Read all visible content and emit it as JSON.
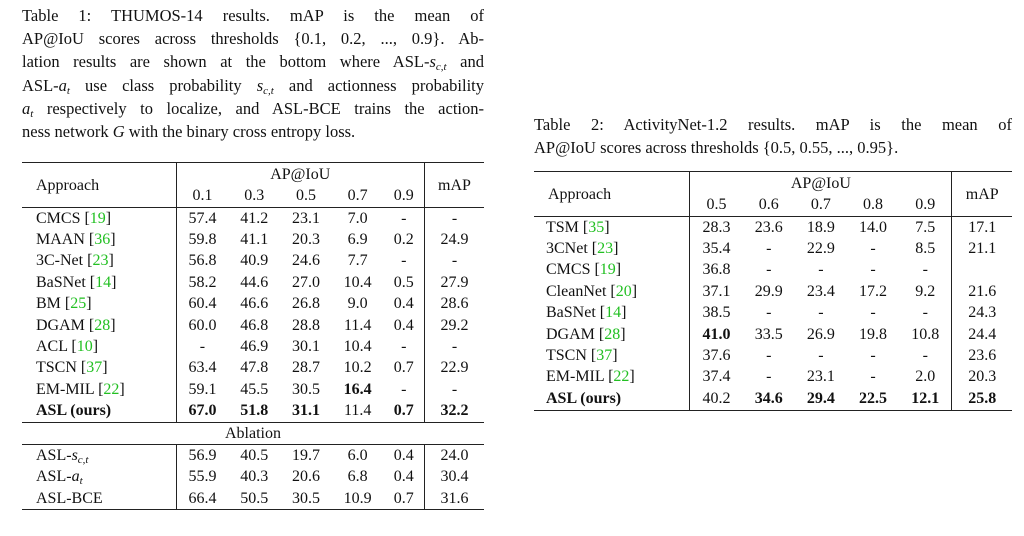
{
  "table1": {
    "caption_lines": [
      [
        {
          "t": "Table 1:  THUMOS-14 results.  mAP is the mean of"
        }
      ],
      [
        {
          "t": "AP@IoU scores across thresholds {0.1, 0.2, ..., 0.9}.  Ab-"
        }
      ],
      [
        {
          "t": "lation results are shown at the bottom where ASL-"
        },
        {
          "t": "s",
          "i": true
        },
        {
          "sub": "c,t"
        },
        {
          "t": " and"
        }
      ],
      [
        {
          "t": "ASL-"
        },
        {
          "t": "a",
          "i": true
        },
        {
          "sub": "t"
        },
        {
          "t": " use class probability "
        },
        {
          "t": "s",
          "i": true
        },
        {
          "sub": "c,t"
        },
        {
          "t": " and actionness probability"
        }
      ],
      [
        {
          "t": "a",
          "i": true
        },
        {
          "sub": "t"
        },
        {
          "t": " respectively to localize, and ASL-BCE trains the action-"
        }
      ],
      [
        {
          "t": "ness network "
        },
        {
          "t": "G",
          "i": true
        },
        {
          "t": " with the binary cross entropy loss."
        }
      ]
    ],
    "header": {
      "approach": "Approach",
      "group": "AP@IoU",
      "thresholds": [
        "0.1",
        "0.3",
        "0.5",
        "0.7",
        "0.9"
      ],
      "map": "mAP"
    },
    "rows": [
      {
        "name": "CMCS",
        "ref": "19",
        "values": [
          "57.4",
          "41.2",
          "23.1",
          "7.0",
          "-",
          "-"
        ],
        "bold": []
      },
      {
        "name": "MAAN",
        "ref": "36",
        "values": [
          "59.8",
          "41.1",
          "20.3",
          "6.9",
          "0.2",
          "24.9"
        ],
        "bold": []
      },
      {
        "name": "3C-Net",
        "ref": "23",
        "values": [
          "56.8",
          "40.9",
          "24.6",
          "7.7",
          "-",
          "-"
        ],
        "bold": []
      },
      {
        "name": "BaSNet",
        "ref": "14",
        "values": [
          "58.2",
          "44.6",
          "27.0",
          "10.4",
          "0.5",
          "27.9"
        ],
        "bold": []
      },
      {
        "name": "BM",
        "ref": "25",
        "values": [
          "60.4",
          "46.6",
          "26.8",
          "9.0",
          "0.4",
          "28.6"
        ],
        "bold": []
      },
      {
        "name": "DGAM",
        "ref": "28",
        "values": [
          "60.0",
          "46.8",
          "28.8",
          "11.4",
          "0.4",
          "29.2"
        ],
        "bold": []
      },
      {
        "name": "ACL",
        "ref": "10",
        "values": [
          "-",
          "46.9",
          "30.1",
          "10.4",
          "-",
          "-"
        ],
        "bold": []
      },
      {
        "name": "TSCN",
        "ref": "37",
        "values": [
          "63.4",
          "47.8",
          "28.7",
          "10.2",
          "0.7",
          "22.9"
        ],
        "bold": []
      },
      {
        "name": "EM-MIL",
        "ref": "22",
        "values": [
          "59.1",
          "45.5",
          "30.5",
          "16.4",
          "-",
          "-"
        ],
        "bold": [
          3
        ]
      },
      {
        "name": "ASL (ours)",
        "ref": "",
        "values": [
          "67.0",
          "51.8",
          "31.1",
          "11.4",
          "0.7",
          "32.2"
        ],
        "bold": [
          -1,
          0,
          1,
          2,
          4,
          5
        ]
      }
    ],
    "ablation_label": "Ablation",
    "ablation_rows": [
      {
        "name": "ASL-",
        "math": "s",
        "sub": "c,t",
        "values": [
          "56.9",
          "40.5",
          "19.7",
          "6.0",
          "0.4",
          "24.0"
        ]
      },
      {
        "name": "ASL-",
        "math": "a",
        "sub": "t",
        "values": [
          "55.9",
          "40.3",
          "20.6",
          "6.8",
          "0.4",
          "30.4"
        ]
      },
      {
        "name": "ASL-BCE",
        "values": [
          "66.4",
          "50.5",
          "30.5",
          "10.9",
          "0.7",
          "31.6"
        ]
      }
    ]
  },
  "table2": {
    "caption_lines": [
      [
        {
          "t": "Table 2:  ActivityNet-1.2 results.  mAP is the mean of"
        }
      ],
      [
        {
          "t": "AP@IoU scores across thresholds {0.5, 0.55, ..., 0.95}."
        }
      ]
    ],
    "header": {
      "approach": "Approach",
      "group": "AP@IoU",
      "thresholds": [
        "0.5",
        "0.6",
        "0.7",
        "0.8",
        "0.9"
      ],
      "map": "mAP"
    },
    "rows": [
      {
        "name": "TSM",
        "ref": "35",
        "values": [
          "28.3",
          "23.6",
          "18.9",
          "14.0",
          "7.5",
          "17.1"
        ],
        "bold": []
      },
      {
        "name": "3CNet",
        "ref": "23",
        "values": [
          "35.4",
          "-",
          "22.9",
          "-",
          "8.5",
          "21.1"
        ],
        "bold": []
      },
      {
        "name": "CMCS",
        "ref": "19",
        "values": [
          "36.8",
          "-",
          "-",
          "-",
          "-",
          ""
        ],
        "bold": []
      },
      {
        "name": "CleanNet",
        "ref": "20",
        "values": [
          "37.1",
          "29.9",
          "23.4",
          "17.2",
          "9.2",
          "21.6"
        ],
        "bold": []
      },
      {
        "name": "BaSNet",
        "ref": "14",
        "values": [
          "38.5",
          "-",
          "-",
          "-",
          "-",
          "24.3"
        ],
        "bold": []
      },
      {
        "name": "DGAM",
        "ref": "28",
        "values": [
          "41.0",
          "33.5",
          "26.9",
          "19.8",
          "10.8",
          "24.4"
        ],
        "bold": [
          0
        ]
      },
      {
        "name": "TSCN",
        "ref": "37",
        "values": [
          "37.6",
          "-",
          "-",
          "-",
          "-",
          "23.6"
        ],
        "bold": []
      },
      {
        "name": "EM-MIL",
        "ref": "22",
        "values": [
          "37.4",
          "-",
          "23.1",
          "-",
          "2.0",
          "20.3"
        ],
        "bold": []
      },
      {
        "name": "ASL (ours)",
        "ref": "",
        "values": [
          "40.2",
          "34.6",
          "29.4",
          "22.5",
          "12.1",
          "25.8"
        ],
        "bold": [
          -1,
          1,
          2,
          3,
          4,
          5
        ]
      }
    ]
  },
  "colors": {
    "ref": "#22c022",
    "text": "#111111"
  }
}
